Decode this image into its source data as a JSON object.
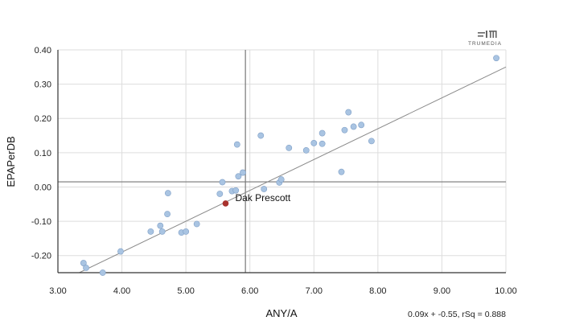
{
  "chart_data": {
    "type": "scatter",
    "xlabel": "ANY/A",
    "ylabel": "EPAPerDB",
    "xlim": [
      3.0,
      10.0
    ],
    "ylim": [
      -0.25,
      0.4
    ],
    "xticks": [
      "3.00",
      "4.00",
      "5.00",
      "6.00",
      "7.00",
      "8.00",
      "9.00",
      "10.00"
    ],
    "yticks": [
      "-0.20",
      "-0.10",
      "0.00",
      "0.10",
      "0.20",
      "0.30",
      "0.40"
    ],
    "xtick_values": [
      3,
      4,
      5,
      6,
      7,
      8,
      9,
      10
    ],
    "ytick_values": [
      -0.2,
      -0.1,
      0.0,
      0.1,
      0.2,
      0.3,
      0.4
    ],
    "grid": true,
    "mean_lines": {
      "x": 5.93,
      "y": 0.015
    },
    "trendline": {
      "slope": 0.09,
      "intercept": -0.55,
      "x_range": [
        3.0,
        10.0
      ],
      "label": "0.09x + -0.55, rSq = 0.888"
    },
    "highlight": {
      "name": "Dak Prescott",
      "x": 5.62,
      "y": -0.048,
      "color": "#a8322d"
    },
    "points": [
      {
        "x": 3.4,
        "y": -0.222
      },
      {
        "x": 3.44,
        "y": -0.236
      },
      {
        "x": 3.7,
        "y": -0.25
      },
      {
        "x": 3.98,
        "y": -0.188
      },
      {
        "x": 4.45,
        "y": -0.13
      },
      {
        "x": 4.6,
        "y": -0.113
      },
      {
        "x": 4.63,
        "y": -0.13
      },
      {
        "x": 4.71,
        "y": -0.079
      },
      {
        "x": 4.72,
        "y": -0.018
      },
      {
        "x": 4.93,
        "y": -0.133
      },
      {
        "x": 5.0,
        "y": -0.13
      },
      {
        "x": 5.17,
        "y": -0.108
      },
      {
        "x": 5.53,
        "y": -0.02
      },
      {
        "x": 5.57,
        "y": 0.014
      },
      {
        "x": 5.72,
        "y": -0.012
      },
      {
        "x": 5.78,
        "y": -0.01
      },
      {
        "x": 5.8,
        "y": 0.124
      },
      {
        "x": 5.82,
        "y": 0.031
      },
      {
        "x": 5.89,
        "y": 0.042
      },
      {
        "x": 6.17,
        "y": 0.15
      },
      {
        "x": 6.22,
        "y": -0.006
      },
      {
        "x": 6.46,
        "y": 0.013
      },
      {
        "x": 6.49,
        "y": 0.022
      },
      {
        "x": 6.61,
        "y": 0.114
      },
      {
        "x": 6.88,
        "y": 0.107
      },
      {
        "x": 7.0,
        "y": 0.128
      },
      {
        "x": 7.13,
        "y": 0.157
      },
      {
        "x": 7.13,
        "y": 0.126
      },
      {
        "x": 7.43,
        "y": 0.044
      },
      {
        "x": 7.48,
        "y": 0.166
      },
      {
        "x": 7.54,
        "y": 0.218
      },
      {
        "x": 7.62,
        "y": 0.176
      },
      {
        "x": 7.74,
        "y": 0.181
      },
      {
        "x": 7.9,
        "y": 0.134
      },
      {
        "x": 9.85,
        "y": 0.376
      }
    ],
    "colors": {
      "point": "#a9c4e2",
      "point_stroke": "#7f9fc6",
      "grid": "#dddddd",
      "axis": "#333333",
      "trend": "#8a8a8a",
      "mean": "#777777"
    }
  },
  "logo": {
    "name": "trumedia-logo-icon",
    "text": "TRUMEDIA"
  }
}
